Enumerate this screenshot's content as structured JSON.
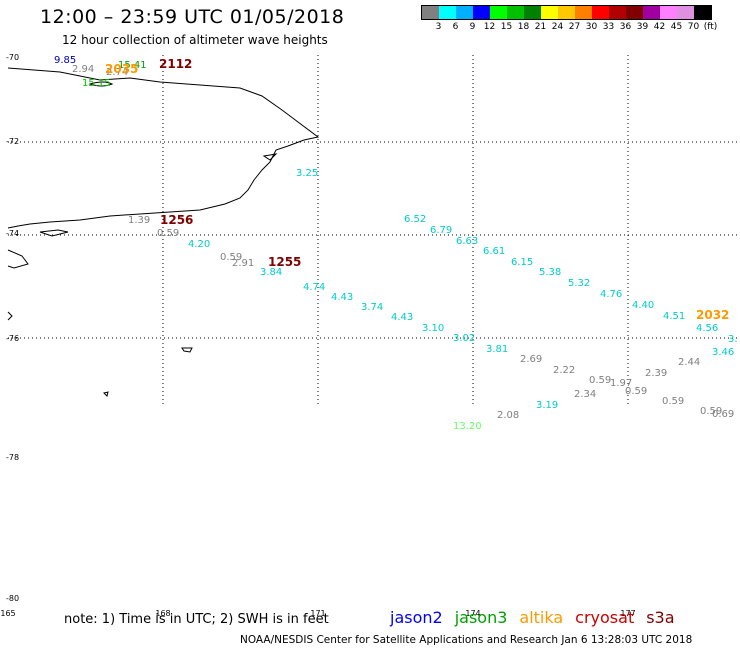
{
  "title": "12:00 – 23:59 UTC 01/05/2018",
  "subtitle": "12 hour collection of altimeter wave heights",
  "legend": {
    "colors": [
      "#808080",
      "#00ffff",
      "#00b0ff",
      "#0000ff",
      "#00ff00",
      "#00c000",
      "#008000",
      "#ffff00",
      "#ffc800",
      "#ff8000",
      "#ff0000",
      "#b00000",
      "#800000",
      "#a000a0",
      "#ff80ff",
      "#e090e0",
      "#000000"
    ],
    "labels": [
      "3",
      "6",
      "9",
      "12",
      "15",
      "18",
      "21",
      "24",
      "27",
      "30",
      "33",
      "36",
      "39",
      "42",
      "45",
      "70",
      "(ft)"
    ]
  },
  "axes": {
    "lat_labels": [
      "-70",
      "-72",
      "-74",
      "-76",
      "-78",
      "-80"
    ],
    "lon_labels": [
      "165",
      "168",
      "171",
      "174",
      "177"
    ]
  },
  "observations": [
    {
      "text": "9.85",
      "color": "#0000aa"
    },
    {
      "text": "2.94",
      "color": "#808080"
    },
    {
      "text": "2.74",
      "color": "#808080"
    },
    {
      "text": "15.41",
      "color": "#00a000"
    },
    {
      "text": "2035",
      "color": "#ff9900"
    },
    {
      "text": "2112",
      "color": "#800000"
    },
    {
      "text": "15.15",
      "color": "#00c000"
    },
    {
      "text": "3.25",
      "color": "#00cccc"
    },
    {
      "text": "6.52",
      "color": "#00cccc"
    },
    {
      "text": "6.79",
      "color": "#00cccc"
    },
    {
      "text": "6.63",
      "color": "#00cccc"
    },
    {
      "text": "6.61",
      "color": "#00cccc"
    },
    {
      "text": "6.15",
      "color": "#00cccc"
    },
    {
      "text": "5.38",
      "color": "#00cccc"
    },
    {
      "text": "5.32",
      "color": "#00cccc"
    },
    {
      "text": "4.76",
      "color": "#00cccc"
    },
    {
      "text": "4.40",
      "color": "#00cccc"
    },
    {
      "text": "4.51",
      "color": "#00cccc"
    },
    {
      "text": "2032",
      "color": "#ff9900"
    },
    {
      "text": "4.56",
      "color": "#00cccc"
    },
    {
      "text": "3.46",
      "color": "#00cccc"
    },
    {
      "text": "3.",
      "color": "#00cccc"
    },
    {
      "text": "1.39",
      "color": "#808080"
    },
    {
      "text": "1256",
      "color": "#800000"
    },
    {
      "text": "0.59",
      "color": "#808080"
    },
    {
      "text": "4.20",
      "color": "#00cccc"
    },
    {
      "text": "0.59",
      "color": "#808080"
    },
    {
      "text": "2.91",
      "color": "#808080"
    },
    {
      "text": "1255",
      "color": "#800000"
    },
    {
      "text": "3.84",
      "color": "#00cccc"
    },
    {
      "text": "4.74",
      "color": "#00cccc"
    },
    {
      "text": "4.43",
      "color": "#00cccc"
    },
    {
      "text": "3.74",
      "color": "#00cccc"
    },
    {
      "text": "4.43",
      "color": "#00cccc"
    },
    {
      "text": "3.10",
      "color": "#00cccc"
    },
    {
      "text": "3.02",
      "color": "#00cccc"
    },
    {
      "text": "3.81",
      "color": "#00cccc"
    },
    {
      "text": "2.69",
      "color": "#808080"
    },
    {
      "text": "2.22",
      "color": "#808080"
    },
    {
      "text": "0.59",
      "color": "#808080"
    },
    {
      "text": "1.97",
      "color": "#808080"
    },
    {
      "text": "2.39",
      "color": "#808080"
    },
    {
      "text": "2.44",
      "color": "#808080"
    },
    {
      "text": "2.34",
      "color": "#808080"
    },
    {
      "text": "0.59",
      "color": "#808080"
    },
    {
      "text": "0.59",
      "color": "#808080"
    },
    {
      "text": "0.59",
      "color": "#808080"
    },
    {
      "text": "0.69",
      "color": "#808080"
    },
    {
      "text": "3.19",
      "color": "#00cccc"
    },
    {
      "text": "2.08",
      "color": "#808080"
    },
    {
      "text": "13.20",
      "color": "#66ff66"
    }
  ],
  "footer": {
    "note": "note:  1) Time is in UTC;  2) SWH is in feet",
    "satellites": [
      {
        "name": "jason2",
        "color": "#0000ff"
      },
      {
        "name": "jason3",
        "color": "#00a000"
      },
      {
        "name": "altika",
        "color": "#ff9900"
      },
      {
        "name": "cryosat",
        "color": "#cc0000"
      },
      {
        "name": "s3a",
        "color": "#800000"
      }
    ],
    "credit": "NOAA/NESDIS Center for Satellite Applications and Research     Jan  6 13:28:03 UTC 2018"
  }
}
